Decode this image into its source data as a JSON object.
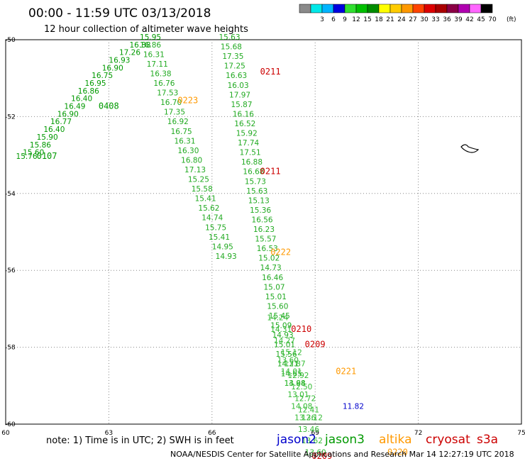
{
  "title": "00:00 - 11:59 UTC 03/13/2018",
  "subtitle": "12 hour collection of altimeter wave heights",
  "legend": {
    "unit": "(ft)",
    "swatches": [
      {
        "label": "",
        "color": "#8a8a8a"
      },
      {
        "label": "3",
        "color": "#00e8e8"
      },
      {
        "label": "6",
        "color": "#00b4ff"
      },
      {
        "label": "9",
        "color": "#0000e0"
      },
      {
        "label": "12",
        "color": "#30e030"
      },
      {
        "label": "15",
        "color": "#00c000"
      },
      {
        "label": "18",
        "color": "#008c00"
      },
      {
        "label": "21",
        "color": "#ffff00"
      },
      {
        "label": "24",
        "color": "#ffcc00"
      },
      {
        "label": "27",
        "color": "#ff9900"
      },
      {
        "label": "30",
        "color": "#ff4400"
      },
      {
        "label": "33",
        "color": "#dd0000"
      },
      {
        "label": "36",
        "color": "#aa0000"
      },
      {
        "label": "39",
        "color": "#8b0045"
      },
      {
        "label": "42",
        "color": "#b000b0"
      },
      {
        "label": "45",
        "color": "#ff66ff"
      },
      {
        "label": "70",
        "color": "#000000"
      }
    ]
  },
  "note": "note: 1) Time is in UTC; 2) SWH is in feet",
  "satellites": [
    {
      "name": "jason2",
      "color": "#0000cc"
    },
    {
      "name": "jason3",
      "color": "#009900"
    },
    {
      "name": "altika",
      "color": "#ff9900"
    },
    {
      "name": "cryosat",
      "color": "#cc0000"
    },
    {
      "name": "s3a",
      "color": "#cc0000"
    }
  ],
  "footer": "NOAA/NESDIS Center for Satellite Applications and Research  Mar 14 12:27:19 UTC 2018",
  "chart_data": {
    "type": "scatter",
    "xlim": [
      60,
      75
    ],
    "ylim": [
      -60,
      -50
    ],
    "x_ticks": [
      60,
      63,
      66,
      69,
      72,
      75
    ],
    "y_ticks": [
      -50,
      -52,
      -54,
      -56,
      -58,
      -60
    ],
    "grid": true,
    "tracks": [
      {
        "satellite": "jason3",
        "color": "#009900",
        "points": [
          {
            "x": 60.3,
            "y": -53.1,
            "v": "15.76"
          },
          {
            "x": 60.5,
            "y": -53.0,
            "v": "15.60"
          },
          {
            "x": 60.7,
            "y": -52.8,
            "v": "15.86"
          },
          {
            "x": 60.9,
            "y": -52.6,
            "v": "15.90"
          },
          {
            "x": 61.1,
            "y": -52.4,
            "v": "16.40"
          },
          {
            "x": 61.3,
            "y": -52.2,
            "v": "16.77"
          },
          {
            "x": 61.5,
            "y": -52.0,
            "v": "16.90"
          },
          {
            "x": 61.7,
            "y": -51.8,
            "v": "16.49"
          },
          {
            "x": 61.9,
            "y": -51.6,
            "v": "16.40"
          },
          {
            "x": 62.1,
            "y": -51.4,
            "v": "16.86"
          },
          {
            "x": 62.3,
            "y": -51.2,
            "v": "16.95"
          },
          {
            "x": 62.5,
            "y": -51.0,
            "v": "16.75"
          },
          {
            "x": 62.8,
            "y": -50.8,
            "v": "16.90"
          },
          {
            "x": 63.0,
            "y": -50.6,
            "v": "16.93"
          },
          {
            "x": 63.3,
            "y": -50.4,
            "v": "17.26"
          },
          {
            "x": 63.6,
            "y": -50.2,
            "v": "16.88"
          },
          {
            "x": 63.9,
            "y": -50.0,
            "v": "15.95"
          }
        ],
        "labels": [
          {
            "x": 60.9,
            "y": -53.1,
            "t": "0107"
          },
          {
            "x": 62.7,
            "y": -51.8,
            "t": "0408"
          }
        ]
      },
      {
        "satellite": "jason3",
        "color": "#22aa22",
        "points": [
          {
            "x": 63.9,
            "y": -50.2,
            "v": "16.86"
          },
          {
            "x": 64.0,
            "y": -50.45,
            "v": "16.31"
          },
          {
            "x": 64.1,
            "y": -50.7,
            "v": "17.11"
          },
          {
            "x": 64.2,
            "y": -50.95,
            "v": "16.38"
          },
          {
            "x": 64.3,
            "y": -51.2,
            "v": "16.76"
          },
          {
            "x": 64.4,
            "y": -51.45,
            "v": "17.53"
          },
          {
            "x": 64.5,
            "y": -51.7,
            "v": "16.70"
          },
          {
            "x": 64.6,
            "y": -51.95,
            "v": "17.35"
          },
          {
            "x": 64.7,
            "y": -52.2,
            "v": "16.92"
          },
          {
            "x": 64.8,
            "y": -52.45,
            "v": "16.75"
          },
          {
            "x": 64.9,
            "y": -52.7,
            "v": "16.31"
          },
          {
            "x": 65.0,
            "y": -52.95,
            "v": "16.30"
          },
          {
            "x": 65.1,
            "y": -53.2,
            "v": "16.80"
          },
          {
            "x": 65.2,
            "y": -53.45,
            "v": "17.13"
          },
          {
            "x": 65.3,
            "y": -53.7,
            "v": "15.25"
          },
          {
            "x": 65.4,
            "y": -53.95,
            "v": "15.58"
          },
          {
            "x": 65.5,
            "y": -54.2,
            "v": "15.41"
          },
          {
            "x": 65.6,
            "y": -54.45,
            "v": "15.62"
          },
          {
            "x": 65.7,
            "y": -54.7,
            "v": "14.74"
          },
          {
            "x": 65.8,
            "y": -54.95,
            "v": "15.75"
          },
          {
            "x": 65.9,
            "y": -55.2,
            "v": "15.41"
          },
          {
            "x": 66.0,
            "y": -55.45,
            "v": "14.95"
          },
          {
            "x": 66.1,
            "y": -55.7,
            "v": "14.93"
          }
        ],
        "labels": [
          {
            "x": 65.0,
            "y": -51.65,
            "t": "0223",
            "color": "#ff9900"
          }
        ]
      },
      {
        "satellite": "jason3",
        "color": "#22aa22",
        "points": [
          {
            "x": 66.2,
            "y": -50.0,
            "v": "15.63"
          },
          {
            "x": 66.25,
            "y": -50.25,
            "v": "15.68"
          },
          {
            "x": 66.3,
            "y": -50.5,
            "v": "17.35"
          },
          {
            "x": 66.35,
            "y": -50.75,
            "v": "17.25"
          },
          {
            "x": 66.4,
            "y": -51.0,
            "v": "16.63"
          },
          {
            "x": 66.45,
            "y": -51.25,
            "v": "16.03"
          },
          {
            "x": 66.5,
            "y": -51.5,
            "v": "17.97"
          },
          {
            "x": 66.55,
            "y": -51.75,
            "v": "15.87"
          },
          {
            "x": 66.6,
            "y": -52.0,
            "v": "16.16"
          },
          {
            "x": 66.65,
            "y": -52.25,
            "v": "16.52"
          },
          {
            "x": 66.7,
            "y": -52.5,
            "v": "15.92"
          },
          {
            "x": 66.75,
            "y": -52.75,
            "v": "17.74"
          },
          {
            "x": 66.8,
            "y": -53.0,
            "v": "17.51"
          },
          {
            "x": 66.85,
            "y": -53.25,
            "v": "16.88"
          },
          {
            "x": 66.9,
            "y": -53.5,
            "v": "16.68"
          },
          {
            "x": 66.95,
            "y": -53.75,
            "v": "15.73"
          },
          {
            "x": 67.0,
            "y": -54.0,
            "v": "15.63"
          },
          {
            "x": 67.05,
            "y": -54.25,
            "v": "15.13"
          },
          {
            "x": 67.1,
            "y": -54.5,
            "v": "15.36"
          },
          {
            "x": 67.15,
            "y": -54.75,
            "v": "16.56"
          },
          {
            "x": 67.2,
            "y": -55.0,
            "v": "16.23"
          },
          {
            "x": 67.25,
            "y": -55.25,
            "v": "15.57"
          },
          {
            "x": 67.3,
            "y": -55.5,
            "v": "16.53"
          },
          {
            "x": 67.35,
            "y": -55.75,
            "v": "15.02"
          },
          {
            "x": 67.4,
            "y": -56.0,
            "v": "14.73"
          },
          {
            "x": 67.45,
            "y": -56.25,
            "v": "16.46"
          },
          {
            "x": 67.5,
            "y": -56.5,
            "v": "15.07"
          },
          {
            "x": 67.55,
            "y": -56.75,
            "v": "15.01"
          },
          {
            "x": 67.6,
            "y": -57.0,
            "v": "15.60"
          },
          {
            "x": 67.65,
            "y": -57.25,
            "v": "15.45"
          },
          {
            "x": 67.7,
            "y": -57.5,
            "v": "15.09"
          },
          {
            "x": 67.75,
            "y": -57.75,
            "v": "14.93"
          },
          {
            "x": 67.8,
            "y": -58.0,
            "v": "15.01"
          },
          {
            "x": 67.85,
            "y": -58.25,
            "v": "15.56"
          },
          {
            "x": 67.9,
            "y": -58.5,
            "v": "14.21"
          },
          {
            "x": 68.0,
            "y": -58.75,
            "v": "14.65"
          },
          {
            "x": 68.1,
            "y": -59.0,
            "v": "13.98"
          }
        ],
        "labels": [
          {
            "x": 67.4,
            "y": -50.9,
            "t": "0211",
            "color": "#cc0000"
          },
          {
            "x": 67.4,
            "y": -53.5,
            "t": "0211",
            "color": "#cc0000"
          },
          {
            "x": 67.7,
            "y": -55.6,
            "t": "0222",
            "color": "#ff9900"
          }
        ]
      },
      {
        "satellite": "jason3",
        "color": "#33bb33",
        "points": [
          {
            "x": 67.6,
            "y": -57.3,
            "v": "14.24"
          },
          {
            "x": 67.7,
            "y": -57.6,
            "v": "14.31"
          },
          {
            "x": 67.8,
            "y": -57.9,
            "v": "14.27"
          },
          {
            "x": 68.0,
            "y": -58.2,
            "v": "15.12"
          },
          {
            "x": 68.1,
            "y": -58.5,
            "v": "13.87"
          },
          {
            "x": 68.2,
            "y": -58.8,
            "v": "12.92"
          },
          {
            "x": 68.3,
            "y": -59.1,
            "v": "12.50"
          },
          {
            "x": 68.4,
            "y": -59.4,
            "v": "12.72"
          },
          {
            "x": 68.5,
            "y": -59.7,
            "v": "12.41"
          },
          {
            "x": 68.6,
            "y": -59.9,
            "v": "12.12"
          }
        ],
        "labels": [
          {
            "x": 68.3,
            "y": -57.6,
            "t": "0210",
            "color": "#cc0000"
          },
          {
            "x": 68.7,
            "y": -58.0,
            "t": "0209",
            "color": "#cc0000"
          },
          {
            "x": 69.6,
            "y": -58.7,
            "t": "0221",
            "color": "#ff9900"
          }
        ]
      },
      {
        "satellite": "jason3",
        "color": "#33bb33",
        "points": [
          {
            "x": 67.9,
            "y": -58.4,
            "v": "13.60"
          },
          {
            "x": 68.0,
            "y": -58.7,
            "v": "14.01"
          },
          {
            "x": 68.1,
            "y": -59.0,
            "v": "14.64"
          },
          {
            "x": 68.2,
            "y": -59.3,
            "v": "13.01"
          },
          {
            "x": 68.3,
            "y": -59.6,
            "v": "14.08"
          },
          {
            "x": 68.4,
            "y": -59.9,
            "v": "13.36"
          },
          {
            "x": 68.5,
            "y": -60.2,
            "v": "13.46"
          },
          {
            "x": 68.6,
            "y": -60.5,
            "v": "13.62"
          },
          {
            "x": 68.7,
            "y": -60.8,
            "v": "13.60"
          }
        ],
        "labels": [
          {
            "x": 68.9,
            "y": -60.9,
            "t": "0209",
            "color": "#cc0000"
          },
          {
            "x": 71.1,
            "y": -60.8,
            "t": "0220",
            "color": "#ff9900"
          }
        ]
      },
      {
        "satellite": "jason2",
        "color": "#0000cc",
        "points": [
          {
            "x": 69.8,
            "y": -59.6,
            "v": "11.82"
          }
        ],
        "labels": []
      }
    ]
  }
}
